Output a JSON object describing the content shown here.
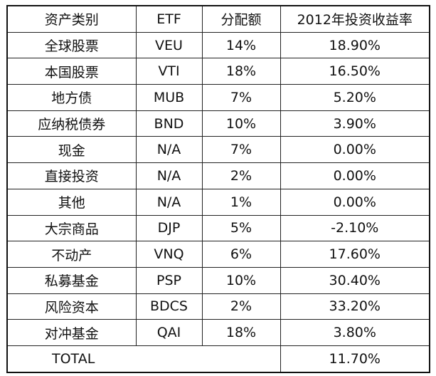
{
  "table": {
    "header": [
      "资产类别",
      "ETF",
      "分配额",
      "2012年投资收益率"
    ],
    "rows": [
      [
        "全球股票",
        "VEU",
        "14%",
        "18.90%"
      ],
      [
        "本国股票",
        "VTI",
        "18%",
        "16.50%"
      ],
      [
        "地方债",
        "MUB",
        "7%",
        "5.20%"
      ],
      [
        "应纳税债券",
        "BND",
        "10%",
        "3.90%"
      ],
      [
        "现金",
        "N/A",
        "7%",
        "0.00%"
      ],
      [
        "直接投资",
        "N/A",
        "2%",
        "0.00%"
      ],
      [
        "其他",
        "N/A",
        "1%",
        "0.00%"
      ],
      [
        "大宗商品",
        "DJP",
        "5%",
        "-2.10%"
      ],
      [
        "不动产",
        "VNQ",
        "6%",
        "17.60%"
      ],
      [
        "私募基金",
        "PSP",
        "10%",
        "30.40%"
      ],
      [
        "风险资本",
        "BDCS",
        "2%",
        "33.20%"
      ],
      [
        "对冲基金",
        "QAI",
        "18%",
        "3.80%"
      ]
    ],
    "total": {
      "label": "TOTAL",
      "value": "11.70%"
    }
  }
}
